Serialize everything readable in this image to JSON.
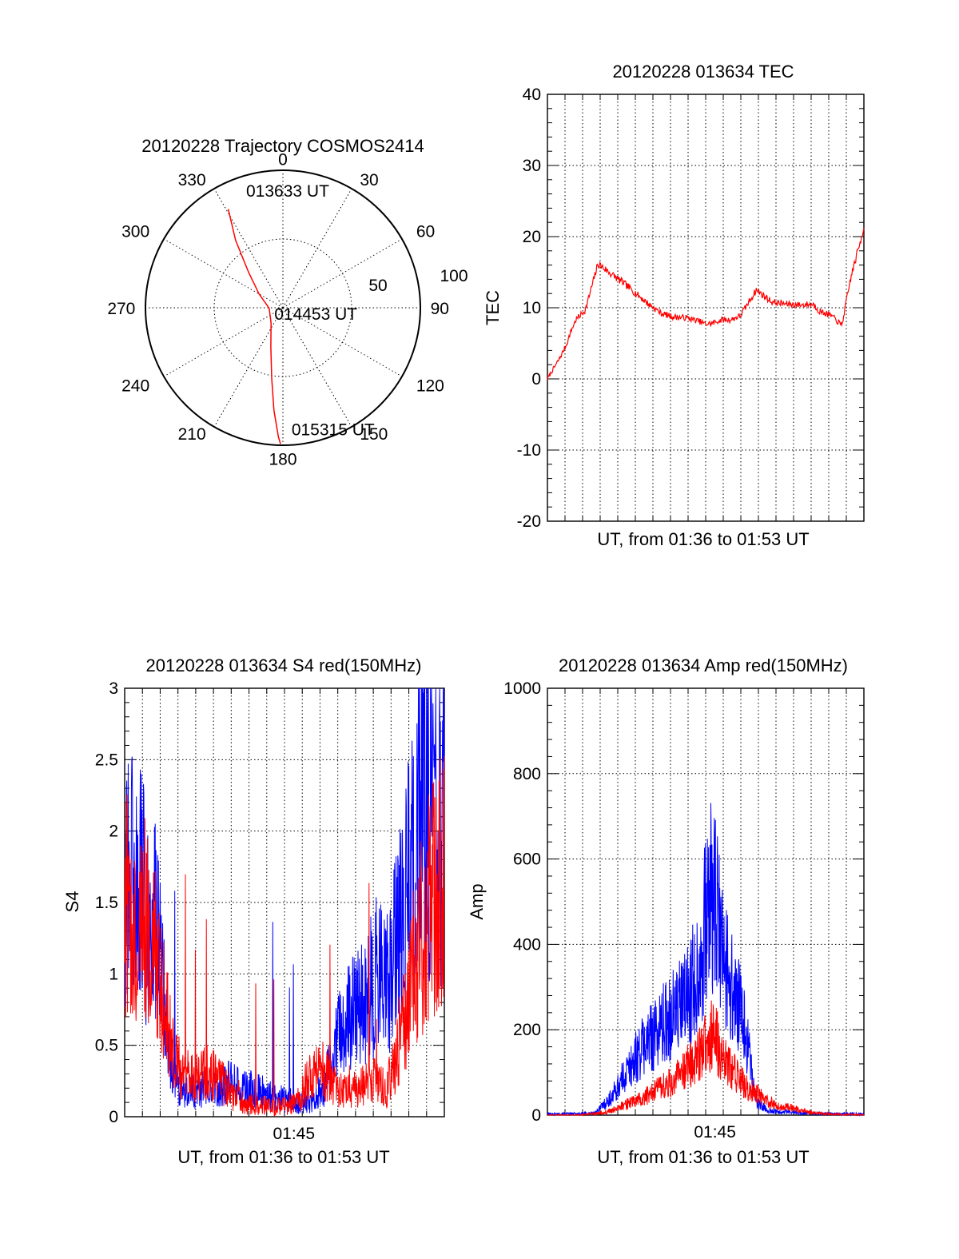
{
  "chart_data": [
    {
      "type": "polar",
      "title": "20120228 Trajectory COSMOS2414",
      "angle_labels": [
        "0",
        "30",
        "60",
        "90",
        "120",
        "150",
        "180",
        "210",
        "240",
        "270",
        "300",
        "330"
      ],
      "radius_labels": [
        "50",
        "100"
      ],
      "rmax": 100,
      "grid": true,
      "series": [
        {
          "color": "#ff0000",
          "points": [
            {
              "az": 331,
              "r": 82
            },
            {
              "az": 325,
              "r": 60
            },
            {
              "az": 316,
              "r": 36
            },
            {
              "az": 300,
              "r": 20
            },
            {
              "az": 268,
              "r": 10
            },
            {
              "az": 218,
              "r": 14
            },
            {
              "az": 197,
              "r": 30
            },
            {
              "az": 189,
              "r": 52
            },
            {
              "az": 185,
              "r": 75
            },
            {
              "az": 182,
              "r": 94
            },
            {
              "az": 181,
              "r": 99
            }
          ]
        }
      ],
      "annotations": [
        {
          "text": "013633 UT",
          "az": 0,
          "r": 82
        },
        {
          "text": "014453 UT",
          "az": 90,
          "r": 10
        },
        {
          "text": "015315 UT",
          "az": 175,
          "r": 99
        }
      ]
    },
    {
      "type": "line",
      "title": "20120228 013634 TEC",
      "xlabel": "UT, from 01:36 to 01:53 UT",
      "ylabel": "TEC",
      "xlim": [
        0,
        1
      ],
      "ylim": [
        -20,
        40
      ],
      "yticks": [
        "-20",
        "-10",
        "0",
        "10",
        "20",
        "30",
        "40"
      ],
      "grid": true,
      "series": [
        {
          "color": "#ff0000",
          "x": [
            0,
            0.02,
            0.04,
            0.06,
            0.075,
            0.09,
            0.12,
            0.16,
            0.2,
            0.24,
            0.28,
            0.32,
            0.36,
            0.4,
            0.44,
            0.48,
            0.5,
            0.52,
            0.55,
            0.58,
            0.61,
            0.66,
            0.71,
            0.76,
            0.8,
            0.84,
            0.86,
            0.88,
            0.9,
            0.93,
            0.96,
            0.99,
            1.0
          ],
          "y": [
            0,
            1.5,
            3,
            4.8,
            6.8,
            8.3,
            9.7,
            16.2,
            14.8,
            13.5,
            12,
            10.5,
            9.2,
            8.7,
            8.6,
            8.1,
            7.7,
            7.8,
            8.3,
            8.3,
            8.9,
            12.5,
            10.8,
            10.5,
            10.4,
            10.5,
            9.5,
            9.2,
            8.8,
            7.5,
            14.5,
            19.5,
            21.5
          ]
        }
      ]
    },
    {
      "type": "line",
      "title": "20120228 013634 S4 red(150MHz)",
      "xlabel": "UT, from 01:36 to 01:53 UT",
      "ylabel": "S4",
      "xlim": [
        "01:36",
        "01:53"
      ],
      "xticks": [
        "01:45"
      ],
      "ylim": [
        0,
        3
      ],
      "yticks": [
        "0",
        "0.5",
        "1",
        "1.5",
        "2",
        "2.5",
        "3"
      ],
      "grid": true,
      "series": [
        {
          "color": "#0000ff",
          "x": [
            0,
            0.03,
            0.06,
            0.09,
            0.12,
            0.15,
            0.18,
            0.22,
            0.26,
            0.3,
            0.34,
            0.38,
            0.42,
            0.46,
            0.5,
            0.54,
            0.58,
            0.62,
            0.66,
            0.7,
            0.74,
            0.78,
            0.82,
            0.85,
            0.88,
            0.91,
            0.94,
            0.97,
            1.0
          ],
          "y": [
            1.6,
            1.7,
            1.5,
            1.4,
            0.9,
            0.3,
            0.2,
            0.18,
            0.2,
            0.22,
            0.24,
            0.2,
            0.18,
            0.14,
            0.12,
            0.1,
            0.12,
            0.18,
            0.5,
            0.7,
            0.85,
            0.9,
            1.0,
            1.2,
            1.5,
            1.9,
            2.1,
            2.2,
            2.0
          ]
        },
        {
          "color": "#ff0000",
          "x": [
            0,
            0.03,
            0.06,
            0.09,
            0.12,
            0.15,
            0.18,
            0.22,
            0.26,
            0.3,
            0.34,
            0.38,
            0.42,
            0.46,
            0.5,
            0.54,
            0.58,
            0.62,
            0.66,
            0.7,
            0.74,
            0.78,
            0.82,
            0.85,
            0.88,
            0.91,
            0.94,
            0.97,
            1.0
          ],
          "y": [
            1.5,
            1.4,
            1.3,
            1.2,
            0.8,
            0.45,
            0.3,
            0.28,
            0.32,
            0.25,
            0.15,
            0.1,
            0.08,
            0.07,
            0.07,
            0.1,
            0.3,
            0.32,
            0.2,
            0.18,
            0.22,
            0.25,
            0.2,
            0.4,
            0.8,
            1.1,
            1.4,
            1.6,
            1.7
          ]
        }
      ]
    },
    {
      "type": "line",
      "title": "20120228 013634 Amp red(150MHz)",
      "xlabel": "UT, from 01:36 to 01:53 UT",
      "ylabel": "Amp",
      "xlim": [
        "01:36",
        "01:53"
      ],
      "xticks": [
        "01:45"
      ],
      "ylim": [
        0,
        1000
      ],
      "yticks": [
        "0",
        "200",
        "400",
        "600",
        "800",
        "1000"
      ],
      "grid": true,
      "series": [
        {
          "color": "#0000ff",
          "x": [
            0,
            0.08,
            0.15,
            0.2,
            0.25,
            0.3,
            0.35,
            0.4,
            0.44,
            0.48,
            0.5,
            0.52,
            0.55,
            0.58,
            0.61,
            0.63,
            0.66,
            0.7,
            0.8,
            0.9,
            1.0
          ],
          "y": [
            3,
            3,
            5,
            40,
            100,
            160,
            200,
            240,
            270,
            350,
            450,
            520,
            400,
            300,
            240,
            180,
            30,
            10,
            5,
            3,
            3
          ]
        },
        {
          "color": "#ff0000",
          "x": [
            0,
            0.1,
            0.15,
            0.2,
            0.25,
            0.3,
            0.35,
            0.4,
            0.44,
            0.48,
            0.5,
            0.52,
            0.55,
            0.58,
            0.61,
            0.64,
            0.68,
            0.72,
            0.78,
            0.84,
            0.9,
            1.0
          ],
          "y": [
            0,
            0,
            3,
            10,
            25,
            40,
            60,
            80,
            110,
            140,
            170,
            190,
            150,
            110,
            80,
            60,
            40,
            25,
            15,
            5,
            2,
            0
          ]
        }
      ]
    }
  ]
}
